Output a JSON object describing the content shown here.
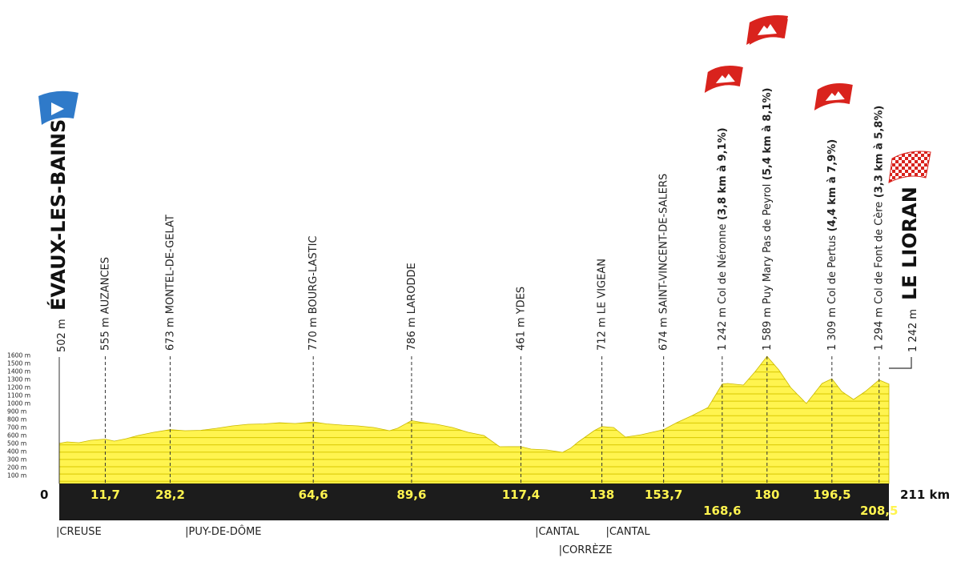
{
  "chart_data": {
    "type": "area",
    "start": {
      "name": "ÉVAUX-LES-BAINS",
      "alt": "502 m",
      "km": "0",
      "icon": "start-flag-icon",
      "color": "#2f7ac9"
    },
    "finish": {
      "name": "LE LIORAN",
      "alt": "1 242 m",
      "km": "211 km",
      "icon": "finish-checkered-flag-icon",
      "color": "#d9231d"
    },
    "waypoints": [
      {
        "name": "AUZANCES",
        "alt": "555 m",
        "km": 11.7,
        "km_label": "11,7"
      },
      {
        "name": "MONTEL-DE-GELAT",
        "alt": "673 m",
        "km": 28.2,
        "km_label": "28,2"
      },
      {
        "name": "BOURG-LASTIC",
        "alt": "770 m",
        "km": 64.6,
        "km_label": "64,6"
      },
      {
        "name": "LARODDE",
        "alt": "786 m",
        "km": 89.6,
        "km_label": "89,6"
      },
      {
        "name": "YDES",
        "alt": "461 m",
        "km": 117.4,
        "km_label": "117,4"
      },
      {
        "name": "LE VIGEAN",
        "alt": "712 m",
        "km": 138,
        "km_label": "138"
      },
      {
        "name": "SAINT-VINCENT-DE-SALERS",
        "alt": "674 m",
        "km": 153.7,
        "km_label": "153,7"
      },
      {
        "name": "Col de Néronne",
        "alt": "1 242 m",
        "detail": "(3,8 km à 9,1%)",
        "km": 168.6,
        "km_label": "168,6",
        "climb": true
      },
      {
        "name": "Puy Mary Pas de Peyrol",
        "alt": "1 589 m",
        "detail": "(5,4 km à 8,1%)",
        "km": 180,
        "km_label": "180",
        "climb": true
      },
      {
        "name": "Col de Pertus",
        "alt": "1 309 m",
        "detail": "(4,4 km à 7,9%)",
        "km": 196.5,
        "km_label": "196,5",
        "climb": true
      },
      {
        "name": "Col de Font de Cère",
        "alt": "1 294 m",
        "detail": "(3,3 km à 5,8%)",
        "km": 208.5,
        "km_label": "208,5",
        "climb": true
      }
    ],
    "y_ticks": [
      "100 m",
      "200 m",
      "300 m",
      "400 m",
      "500 m",
      "600 m",
      "700 m",
      "800 m",
      "900 m",
      "1000 m",
      "1100 m",
      "1200 m",
      "1300 m",
      "1400 m",
      "1500 m",
      "1600 m"
    ],
    "ylim": [
      0,
      1600
    ],
    "xlim": [
      0,
      211
    ],
    "x": [
      0,
      2,
      5,
      8,
      11.7,
      14,
      17,
      20,
      24,
      28.2,
      32,
      36,
      40,
      44,
      48,
      52,
      56,
      60,
      64.6,
      68,
      72,
      76,
      80,
      84,
      86,
      89.6,
      92,
      96,
      100,
      104,
      108,
      112,
      117.4,
      120,
      124,
      128,
      130,
      132,
      136,
      138,
      141,
      144,
      148,
      153.7,
      157,
      161,
      165,
      168.6,
      170,
      174,
      177,
      180,
      183,
      186,
      190,
      194,
      196.5,
      199,
      202,
      205,
      208.5,
      211
    ],
    "elevations": [
      502,
      520,
      510,
      540,
      555,
      530,
      560,
      600,
      640,
      673,
      660,
      665,
      690,
      720,
      740,
      745,
      760,
      750,
      770,
      745,
      730,
      720,
      700,
      660,
      690,
      786,
      765,
      740,
      700,
      640,
      600,
      460,
      461,
      430,
      420,
      390,
      440,
      520,
      660,
      712,
      700,
      580,
      610,
      674,
      760,
      850,
      950,
      1242,
      1250,
      1230,
      1400,
      1589,
      1420,
      1200,
      1000,
      1250,
      1309,
      1150,
      1050,
      1150,
      1294,
      1242
    ],
    "departments": [
      {
        "label": "|CREUSE",
        "km": 0,
        "row": 0
      },
      {
        "label": "|PUY-DE-DÔME",
        "km": 32,
        "row": 0
      },
      {
        "label": "|CANTAL",
        "km": 121,
        "row": 0
      },
      {
        "label": "|CANTAL",
        "km": 139,
        "row": 0
      },
      {
        "label": "|CORRÈZE",
        "km": 127,
        "row": 1
      }
    ],
    "colors": {
      "profile": "#fff44f",
      "profile_stripe": "#d8c800",
      "bar": "#1c1c1c",
      "km_text": "#fff44f",
      "climb": "#d9231d"
    }
  }
}
